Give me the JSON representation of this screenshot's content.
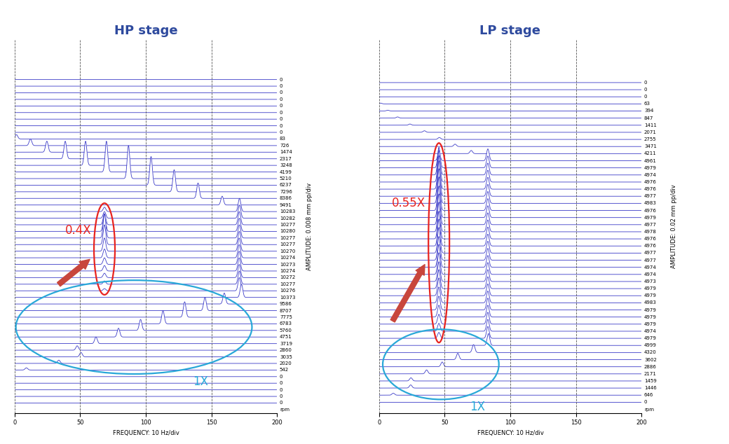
{
  "chart_data": [
    {
      "type": "waterfall",
      "title": "HP stage",
      "xlabel": "FREQUENCY: 10 Hz/div",
      "ylabel": "AMPLITUDE: 0.008 mm pp/div",
      "xlim": [
        0,
        200
      ],
      "xticks": [
        0,
        50,
        100,
        150,
        200
      ],
      "tick_labels": "x",
      "grid": true,
      "color": "#3c3cc8",
      "row_label": "rpm",
      "rows": [
        0,
        0,
        0,
        0,
        0,
        0,
        0,
        0,
        0,
        83,
        726,
        1474,
        2317,
        3248,
        4199,
        5210,
        6237,
        7296,
        8386,
        9491,
        10283,
        10282,
        10277,
        10280,
        10277,
        10277,
        10270,
        10274,
        10273,
        10274,
        10272,
        10277,
        10276,
        10373,
        9586,
        8707,
        7775,
        6783,
        5760,
        4751,
        3719,
        2860,
        3035,
        2020,
        542,
        0,
        0,
        0,
        0,
        0
      ],
      "series": [
        {
          "name": "0.4X",
          "color": "#e8231f",
          "x": [
            null,
            null,
            null,
            null,
            null,
            null,
            null,
            null,
            null,
            null,
            null,
            null,
            null,
            null,
            null,
            null,
            null,
            null,
            null,
            null,
            68.5,
            68.5,
            68.5,
            68.5,
            68.5,
            68.5,
            68.5,
            68.5,
            68.5,
            68.5,
            68.5,
            68.5,
            68.5,
            null,
            null,
            null,
            null,
            null,
            null,
            null,
            null,
            null,
            null,
            null,
            null,
            null,
            null,
            null,
            null,
            null
          ],
          "values": [
            null,
            null,
            null,
            null,
            null,
            null,
            null,
            null,
            null,
            null,
            null,
            null,
            null,
            null,
            null,
            null,
            null,
            null,
            null,
            null,
            0.004,
            0.006,
            0.01,
            0.016,
            0.022,
            0.018,
            0.012,
            0.008,
            0.006,
            0.005,
            0.004,
            0.003,
            0.002,
            null,
            null,
            null,
            null,
            null,
            null,
            null,
            null,
            null,
            null,
            null,
            null,
            null,
            null,
            null,
            null,
            null
          ]
        },
        {
          "name": "1X",
          "color": "#29a8d8",
          "x": [
            null,
            null,
            null,
            null,
            null,
            null,
            null,
            null,
            null,
            null,
            null,
            null,
            null,
            null,
            null,
            null,
            null,
            null,
            null,
            null,
            null,
            null,
            null,
            null,
            null,
            null,
            null,
            null,
            null,
            null,
            null,
            null,
            null,
            172.9,
            159.8,
            145.1,
            129.6,
            113.1,
            96.0,
            79.2,
            62.0,
            47.7,
            50.6,
            33.7,
            9.0,
            null,
            null,
            null,
            null,
            null
          ],
          "values": [
            null,
            null,
            null,
            null,
            null,
            null,
            null,
            null,
            null,
            null,
            null,
            null,
            null,
            null,
            null,
            null,
            null,
            null,
            null,
            null,
            null,
            null,
            null,
            null,
            null,
            null,
            null,
            null,
            null,
            null,
            null,
            null,
            null,
            0.012,
            0.01,
            0.012,
            0.014,
            0.012,
            0.01,
            0.008,
            0.006,
            0.004,
            0.004,
            0.003,
            0.002,
            null,
            null,
            null,
            null,
            null
          ]
        },
        {
          "x": [
            null,
            null,
            null,
            null,
            null,
            null,
            null,
            null,
            null,
            1.4,
            12.1,
            24.6,
            38.6,
            54.1,
            70.0,
            86.8,
            104.0,
            121.6,
            139.8,
            158.2,
            171.4,
            171.4,
            171.3,
            171.3,
            171.3,
            171.3,
            171.2,
            171.2,
            171.2,
            171.2,
            171.2,
            171.3,
            171.3,
            null,
            null,
            null,
            null,
            null,
            null,
            null,
            null,
            null,
            null,
            null,
            null,
            null,
            null,
            null,
            null,
            null
          ],
          "values": [
            null,
            null,
            null,
            null,
            null,
            null,
            null,
            null,
            null,
            0.004,
            0.006,
            0.01,
            0.016,
            0.022,
            0.028,
            0.03,
            0.026,
            0.02,
            0.014,
            0.008,
            0.012,
            0.012,
            0.012,
            0.012,
            0.012,
            0.012,
            0.012,
            0.012,
            0.012,
            0.012,
            0.012,
            0.012,
            0.012,
            null,
            null,
            null,
            null,
            null,
            null,
            null,
            null,
            null,
            null,
            null,
            null,
            null,
            null,
            null,
            null,
            null
          ]
        }
      ]
    },
    {
      "type": "waterfall",
      "title": "LP stage",
      "xlabel": "FREQUENCY: 10 Hz/div",
      "ylabel": "AMPLITUDE: 0.02 mm pp/div",
      "xlim": [
        0,
        200
      ],
      "xticks": [
        0,
        50,
        100,
        150,
        200
      ],
      "tick_labels": "x",
      "grid": true,
      "color": "#3c3cc8",
      "row_label": "rpm",
      "rows": [
        0,
        0,
        0,
        63,
        394,
        847,
        1411,
        2071,
        2755,
        3471,
        4211,
        4961,
        4979,
        4974,
        4976,
        4976,
        4977,
        4983,
        4976,
        4979,
        4977,
        4978,
        4976,
        4976,
        4977,
        4977,
        4974,
        4974,
        4973,
        4979,
        4979,
        4983,
        4979,
        4979,
        4979,
        4974,
        4979,
        4999,
        4320,
        3602,
        2886,
        2171,
        1459,
        1446,
        646,
        0
      ],
      "series": [
        {
          "name": "0.55X",
          "color": "#e8231f",
          "x": [
            null,
            null,
            null,
            null,
            null,
            null,
            null,
            null,
            null,
            null,
            null,
            45.6,
            45.6,
            45.6,
            45.6,
            45.6,
            45.6,
            45.6,
            45.6,
            45.6,
            45.6,
            45.6,
            45.6,
            45.6,
            45.6,
            45.6,
            45.6,
            45.6,
            45.6,
            45.6,
            45.6,
            45.6,
            45.6,
            45.6,
            45.6,
            45.6,
            45.6,
            null,
            null,
            null,
            null,
            null,
            null,
            null,
            null,
            null
          ],
          "values": [
            null,
            null,
            null,
            null,
            null,
            null,
            null,
            null,
            null,
            null,
            null,
            0.02,
            0.05,
            0.07,
            0.08,
            0.085,
            0.09,
            0.088,
            0.085,
            0.08,
            0.078,
            0.075,
            0.07,
            0.068,
            0.065,
            0.06,
            0.058,
            0.055,
            0.05,
            0.048,
            0.045,
            0.04,
            0.035,
            0.03,
            0.025,
            0.02,
            0.015,
            null,
            null,
            null,
            null,
            null,
            null,
            null,
            null,
            null
          ]
        },
        {
          "name": "1X",
          "color": "#29a8d8",
          "x": [
            null,
            null,
            null,
            null,
            null,
            null,
            null,
            null,
            null,
            null,
            null,
            null,
            null,
            null,
            null,
            null,
            null,
            null,
            null,
            null,
            null,
            null,
            null,
            null,
            null,
            null,
            null,
            null,
            null,
            null,
            null,
            null,
            null,
            null,
            null,
            null,
            null,
            83.3,
            72.0,
            60.0,
            48.1,
            36.2,
            24.3,
            24.1,
            10.8,
            null
          ],
          "values": [
            null,
            null,
            null,
            null,
            null,
            null,
            null,
            null,
            null,
            null,
            null,
            null,
            null,
            null,
            null,
            null,
            null,
            null,
            null,
            null,
            null,
            null,
            null,
            null,
            null,
            null,
            null,
            null,
            null,
            null,
            null,
            null,
            null,
            null,
            null,
            null,
            null,
            0.03,
            0.02,
            0.016,
            0.012,
            0.01,
            0.008,
            0.008,
            0.005,
            null
          ]
        },
        {
          "x": [
            null,
            null,
            null,
            1.1,
            6.6,
            14.1,
            23.5,
            34.5,
            45.9,
            57.9,
            70.2,
            82.9,
            82.9,
            82.9,
            82.9,
            82.9,
            82.9,
            82.9,
            82.9,
            82.9,
            82.9,
            82.9,
            82.9,
            82.9,
            82.9,
            82.9,
            82.9,
            82.9,
            82.9,
            82.9,
            82.9,
            82.9,
            82.9,
            82.9,
            82.9,
            82.9,
            82.9,
            null,
            null,
            null,
            null,
            null,
            null,
            null,
            null,
            null
          ],
          "values": [
            null,
            null,
            null,
            0.002,
            0.002,
            0.003,
            0.003,
            0.004,
            0.005,
            0.006,
            0.008,
            0.03,
            0.03,
            0.03,
            0.03,
            0.03,
            0.03,
            0.03,
            0.03,
            0.03,
            0.03,
            0.03,
            0.03,
            0.03,
            0.03,
            0.03,
            0.03,
            0.03,
            0.03,
            0.03,
            0.03,
            0.03,
            0.03,
            0.03,
            0.03,
            0.03,
            0.03,
            null,
            null,
            null,
            null,
            null,
            null,
            null,
            null,
            null
          ]
        }
      ]
    }
  ]
}
